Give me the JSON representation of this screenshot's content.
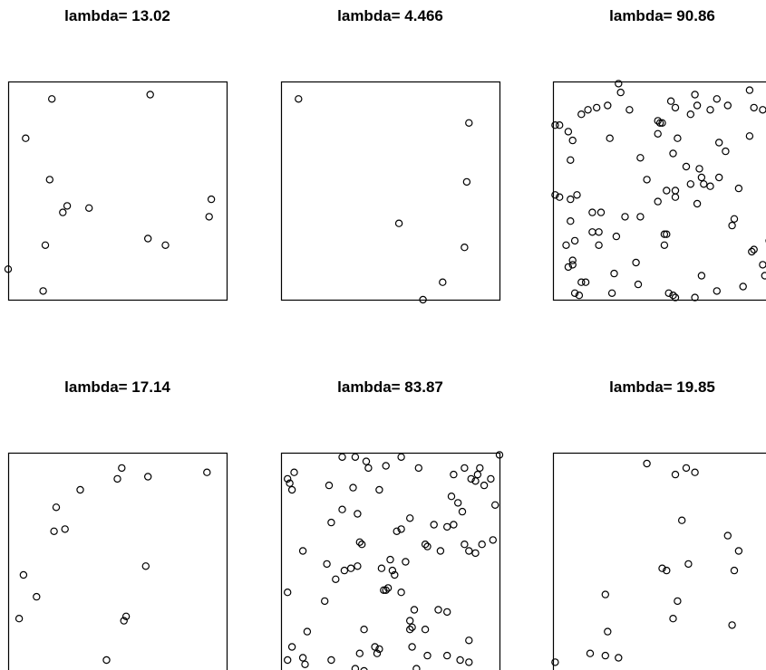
{
  "chart_data": [
    {
      "type": "scatter",
      "title": "lambda= 13.02",
      "xlim": [
        0,
        1
      ],
      "ylim": [
        0,
        1
      ],
      "x": [
        0.2,
        0.65,
        0.08,
        0.19,
        0.25,
        0.27,
        0.37,
        0.93,
        0.92,
        0.64,
        0.72,
        0.17,
        0.16,
        0.0
      ],
      "y": [
        0.92,
        0.94,
        0.74,
        0.55,
        0.4,
        0.43,
        0.42,
        0.46,
        0.38,
        0.28,
        0.25,
        0.25,
        0.04,
        0.14
      ]
    },
    {
      "type": "scatter",
      "title": "lambda= 4.466",
      "xlim": [
        0,
        1
      ],
      "ylim": [
        0,
        1
      ],
      "x": [
        0.08,
        0.86,
        0.85,
        0.54,
        0.84,
        0.74,
        0.65
      ],
      "y": [
        0.92,
        0.81,
        0.54,
        0.35,
        0.24,
        0.08,
        0.0
      ]
    },
    {
      "type": "scatter",
      "title": "lambda= 90.86",
      "xlim": [
        0,
        1
      ],
      "ylim": [
        0,
        1
      ],
      "x": [
        0.3,
        0.31,
        0.54,
        0.9,
        0.92,
        0.56,
        0.65,
        0.72,
        0.75,
        0.96,
        0.13,
        0.16,
        0.2,
        0.25,
        0.35,
        0.48,
        0.49,
        0.5,
        0.63,
        0.66,
        0.8,
        0.01,
        0.03,
        0.07,
        0.09,
        0.26,
        0.48,
        0.57,
        0.76,
        0.9,
        0.08,
        0.4,
        0.55,
        0.61,
        0.68,
        0.67,
        0.79,
        0.11,
        0.43,
        0.52,
        0.56,
        0.63,
        0.69,
        0.72,
        0.76,
        0.01,
        0.03,
        0.18,
        0.48,
        0.56,
        0.85,
        0.08,
        0.22,
        0.66,
        0.08,
        0.33,
        0.4,
        0.51,
        0.82,
        0.83,
        0.06,
        0.18,
        0.21,
        0.51,
        0.91,
        0.99,
        0.1,
        0.21,
        0.29,
        0.52,
        0.09,
        0.92,
        0.96,
        0.07,
        0.09,
        0.28,
        0.38,
        0.68,
        0.97,
        0.13,
        0.15,
        0.39,
        0.75,
        0.87,
        0.1,
        0.12,
        0.27,
        0.53,
        0.55,
        0.56,
        0.65
      ],
      "y": [
        0.99,
        0.95,
        0.91,
        0.96,
        0.88,
        0.88,
        0.94,
        0.87,
        0.92,
        0.87,
        0.85,
        0.87,
        0.88,
        0.89,
        0.87,
        0.82,
        0.81,
        0.81,
        0.85,
        0.89,
        0.89,
        0.8,
        0.8,
        0.77,
        0.73,
        0.74,
        0.76,
        0.74,
        0.72,
        0.75,
        0.64,
        0.65,
        0.67,
        0.61,
        0.56,
        0.6,
        0.68,
        0.48,
        0.55,
        0.5,
        0.5,
        0.53,
        0.53,
        0.52,
        0.56,
        0.48,
        0.47,
        0.4,
        0.45,
        0.47,
        0.51,
        0.46,
        0.4,
        0.44,
        0.36,
        0.38,
        0.38,
        0.3,
        0.34,
        0.37,
        0.25,
        0.31,
        0.31,
        0.25,
        0.22,
        0.27,
        0.27,
        0.25,
        0.29,
        0.3,
        0.18,
        0.23,
        0.16,
        0.15,
        0.16,
        0.12,
        0.17,
        0.11,
        0.11,
        0.08,
        0.08,
        0.07,
        0.04,
        0.06,
        0.03,
        0.02,
        0.03,
        0.03,
        0.02,
        0.01,
        0.01
      ]
    },
    {
      "type": "scatter",
      "title": "lambda= 17.14",
      "xlim": [
        0,
        1
      ],
      "ylim": [
        0,
        1
      ],
      "x": [
        0.52,
        0.5,
        0.64,
        0.91,
        0.33,
        0.22,
        0.21,
        0.26,
        0.63,
        0.07,
        0.13,
        0.05,
        0.54,
        0.53,
        0.45
      ],
      "y": [
        0.93,
        0.88,
        0.89,
        0.91,
        0.83,
        0.75,
        0.64,
        0.65,
        0.48,
        0.44,
        0.34,
        0.24,
        0.25,
        0.23,
        0.05
      ]
    },
    {
      "type": "scatter",
      "title": "lambda= 83.87",
      "xlim": [
        0,
        1
      ],
      "ylim": [
        0,
        1
      ],
      "x": [
        0.28,
        0.34,
        0.39,
        0.55,
        1.0,
        0.4,
        0.06,
        0.03,
        0.04,
        0.05,
        0.48,
        0.63,
        0.79,
        0.84,
        0.9,
        0.91,
        0.96,
        0.22,
        0.33,
        0.45,
        0.87,
        0.89,
        0.93,
        0.78,
        0.23,
        0.28,
        0.35,
        0.59,
        0.7,
        0.79,
        0.81,
        0.83,
        0.98,
        0.53,
        0.55,
        0.36,
        0.1,
        0.89,
        0.5,
        0.84,
        0.97,
        0.73,
        0.76,
        0.86,
        0.92,
        0.21,
        0.32,
        0.37,
        0.57,
        0.66,
        0.67,
        0.25,
        0.35,
        0.46,
        0.51,
        0.29,
        0.52,
        0.55,
        0.03,
        0.2,
        0.47,
        0.48,
        0.49,
        0.76,
        0.12,
        0.66,
        0.86,
        0.38,
        0.05,
        0.59,
        0.6,
        0.43,
        0.45,
        0.59,
        0.61,
        0.72,
        0.03,
        0.1,
        0.23,
        0.36,
        0.44,
        0.6,
        0.67,
        0.76,
        0.86,
        0.11,
        0.34,
        0.82,
        0.62,
        0.38
      ],
      "y": [
        0.98,
        0.98,
        0.96,
        0.98,
        0.99,
        0.93,
        0.91,
        0.88,
        0.86,
        0.83,
        0.94,
        0.93,
        0.9,
        0.93,
        0.9,
        0.93,
        0.88,
        0.85,
        0.84,
        0.83,
        0.88,
        0.87,
        0.85,
        0.8,
        0.68,
        0.74,
        0.72,
        0.7,
        0.67,
        0.67,
        0.77,
        0.73,
        0.76,
        0.64,
        0.65,
        0.59,
        0.55,
        0.54,
        0.51,
        0.58,
        0.6,
        0.55,
        0.66,
        0.55,
        0.58,
        0.49,
        0.47,
        0.58,
        0.5,
        0.58,
        0.57,
        0.42,
        0.48,
        0.47,
        0.46,
        0.46,
        0.44,
        0.36,
        0.36,
        0.32,
        0.37,
        0.37,
        0.38,
        0.27,
        0.18,
        0.19,
        0.14,
        0.19,
        0.11,
        0.19,
        0.2,
        0.11,
        0.1,
        0.23,
        0.28,
        0.28,
        0.05,
        0.06,
        0.05,
        0.08,
        0.08,
        0.11,
        0.07,
        0.07,
        0.04,
        0.03,
        0.01,
        0.05,
        0.01,
        0.0
      ]
    },
    {
      "type": "scatter",
      "title": "lambda= 19.85",
      "xlim": [
        0,
        1
      ],
      "ylim": [
        0,
        1
      ],
      "x": [
        0.43,
        0.56,
        0.61,
        0.65,
        0.59,
        0.8,
        0.85,
        0.83,
        0.5,
        0.52,
        0.62,
        0.24,
        0.57,
        0.55,
        0.82,
        0.25,
        0.17,
        0.24,
        0.3,
        0.01
      ],
      "y": [
        0.95,
        0.9,
        0.93,
        0.91,
        0.69,
        0.62,
        0.55,
        0.46,
        0.47,
        0.46,
        0.49,
        0.35,
        0.32,
        0.24,
        0.21,
        0.18,
        0.08,
        0.07,
        0.06,
        0.04
      ]
    }
  ]
}
